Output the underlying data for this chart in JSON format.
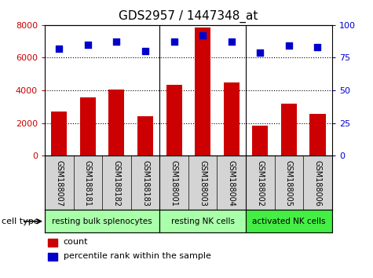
{
  "title": "GDS2957 / 1447348_at",
  "samples": [
    "GSM188007",
    "GSM188181",
    "GSM188182",
    "GSM188183",
    "GSM188001",
    "GSM188003",
    "GSM188004",
    "GSM188002",
    "GSM188005",
    "GSM188006"
  ],
  "counts": [
    2700,
    3550,
    4050,
    2400,
    4350,
    7850,
    4500,
    1850,
    3200,
    2550
  ],
  "percentiles": [
    82,
    85,
    87,
    80,
    87,
    92,
    87,
    79,
    84,
    83
  ],
  "bar_color": "#cc0000",
  "dot_color": "#0000cc",
  "ylim_left": [
    0,
    8000
  ],
  "ylim_right": [
    0,
    100
  ],
  "yticks_left": [
    0,
    2000,
    4000,
    6000,
    8000
  ],
  "yticks_right": [
    0,
    25,
    50,
    75,
    100
  ],
  "grid_values": [
    2000,
    4000,
    6000
  ],
  "group_boundaries": [
    3.5,
    6.5
  ],
  "groups": [
    {
      "label": "resting bulk splenocytes",
      "start": 0,
      "end": 4,
      "color": "#aaffaa"
    },
    {
      "label": "resting NK cells",
      "start": 4,
      "end": 7,
      "color": "#aaffaa"
    },
    {
      "label": "activated NK cells",
      "start": 7,
      "end": 10,
      "color": "#44ee44"
    }
  ],
  "cell_type_label": "cell type",
  "legend_count_label": "count",
  "legend_pct_label": "percentile rank within the sample",
  "tick_bg_color": "#d4d4d4",
  "plot_bg_color": "#ffffff"
}
